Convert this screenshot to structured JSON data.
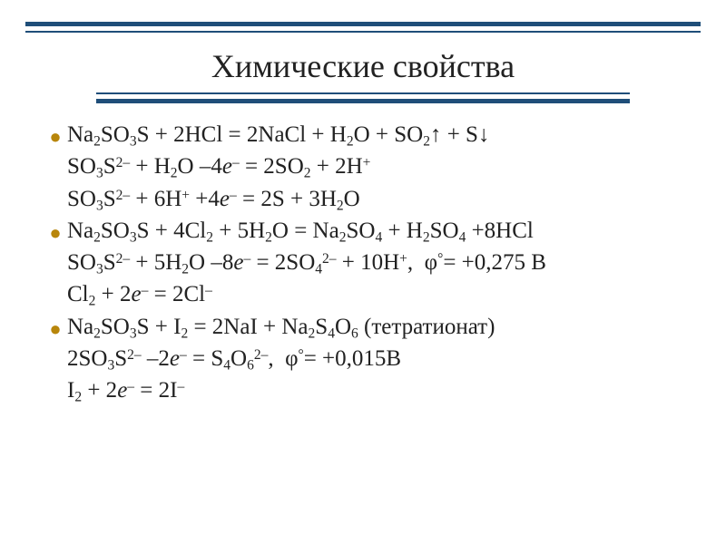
{
  "title": "Химические свойства",
  "colors": {
    "rule": "#1f4e79",
    "bullet": "#b8860b",
    "text": "#222222",
    "background": "#ffffff"
  },
  "typography": {
    "title_fontsize": 36,
    "body_fontsize": 25,
    "font_family": "Times New Roman"
  },
  "lines": [
    {
      "bulleted": true,
      "html": "Na<sub>2</sub>SO<sub>3</sub>S + 2HCl = 2NaCl + H<sub>2</sub>O + SO<sub>2</sub><span class='arrow'>↑</span> + S<span class='arrow'>↓</span>"
    },
    {
      "bulleted": false,
      "html": "SO<sub>3</sub>S<sup>2–</sup> + H<sub>2</sub>O –4<i>e</i><sup>–</sup> = 2SO<sub>2</sub> + 2H<sup>+</sup>"
    },
    {
      "bulleted": false,
      "html": "SO<sub>3</sub>S<sup>2–</sup> + 6H<sup>+</sup> +4<i>e</i><sup>–</sup> = 2S + 3H<sub>2</sub>O"
    },
    {
      "bulleted": true,
      "html": "Na<sub>2</sub>SO<sub>3</sub>S + 4Cl<sub>2</sub> + 5H<sub>2</sub>O = Na<sub>2</sub>SO<sub>4</sub> + H<sub>2</sub>SO<sub>4</sub> +8HCl"
    },
    {
      "bulleted": false,
      "html": "SO<sub>3</sub>S<sup>2–</sup> + 5H<sub>2</sub>O –8<i>e</i><sup>–</sup> = 2SO<sub>4</sub><sup>2–</sup> + 10H<sup>+</sup>, &nbsp;φ<sup>°</sup>= +0,275 В"
    },
    {
      "bulleted": false,
      "html": "Cl<sub>2</sub> + 2<i>e</i><sup>–</sup> = 2Cl<sup>–</sup>"
    },
    {
      "bulleted": true,
      "html": "Na<sub>2</sub>SO<sub>3</sub>S + I<sub>2</sub> = 2NaI + Na<sub>2</sub>S<sub>4</sub>O<sub>6</sub> (тетратионат)"
    },
    {
      "bulleted": false,
      "html": "2SO<sub>3</sub>S<sup>2–</sup> –2<i>e</i><sup>–</sup> = S<sub>4</sub>O<sub>6</sub><sup>2–</sup>, &nbsp;φ<sup>°</sup>= +0,015В"
    },
    {
      "bulleted": false,
      "html": "I<sub>2</sub> + 2<i>e</i><sup>–</sup> = 2I<sup>–</sup>"
    }
  ]
}
